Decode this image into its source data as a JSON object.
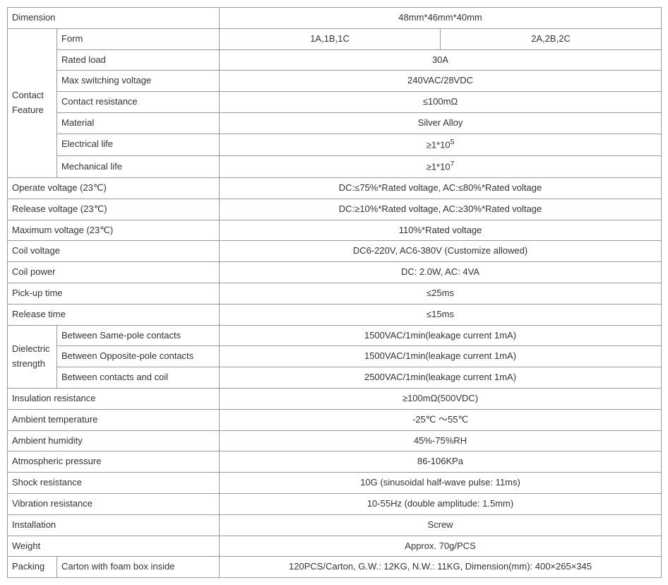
{
  "dimension_label": "Dimension",
  "dimension_value": "48mm*46mm*40mm",
  "contact_feature_label": "Contact Feature",
  "contact": {
    "form_label": "Form",
    "form_value_1": "1A,1B,1C",
    "form_value_2": "2A,2B,2C",
    "rated_load_label": "Rated load",
    "rated_load_value": "30A",
    "max_sw_v_label": "Max switching voltage",
    "max_sw_v_value": "240VAC/28VDC",
    "contact_res_label": "Contact resistance",
    "contact_res_value": "≤100mΩ",
    "material_label": "Material",
    "material_value": "Silver Alloy",
    "elec_life_label": "Electrical life",
    "elec_life_prefix": "≥1*10",
    "elec_life_exp": "5",
    "mech_life_label": "Mechanical life",
    "mech_life_prefix": "≥1*10",
    "mech_life_exp": "7"
  },
  "operate_v_label": "Operate voltage (23℃)",
  "operate_v_value": "DC:≤75%*Rated voltage, AC:≤80%*Rated voltage",
  "release_v_label": "Release voltage (23℃)",
  "release_v_value": "DC:≥10%*Rated voltage, AC:≥30%*Rated voltage",
  "max_v_label": "Maximum voltage (23℃)",
  "max_v_value": "110%*Rated voltage",
  "coil_v_label": "Coil voltage",
  "coil_v_value": "DC6-220V, AC6-380V (Customize allowed)",
  "coil_p_label": "Coil power",
  "coil_p_value": "DC: 2.0W, AC: 4VA",
  "pickup_label": "Pick-up time",
  "pickup_value": "≤25ms",
  "release_t_label": "Release time",
  "release_t_value": "≤15ms",
  "dielectric_label": "Dielectric strength",
  "dielectric": {
    "same_pole_label": "Between Same-pole contacts",
    "same_pole_value": "1500VAC/1min(leakage current 1mA)",
    "opp_pole_label": "Between Opposite-pole contacts",
    "opp_pole_value": "1500VAC/1min(leakage current 1mA)",
    "coil_label": "Between contacts and coil",
    "coil_value": "2500VAC/1min(leakage current 1mA)"
  },
  "insulation_label": "Insulation resistance",
  "insulation_value": "≥100mΩ(500VDC)",
  "amb_temp_label": "Ambient temperature",
  "amb_temp_value": "-25℃ ～55℃",
  "amb_hum_label": "Ambient humidity",
  "amb_hum_value": "45%-75%RH",
  "atm_press_label": "Atmospheric pressure",
  "atm_press_value": "86-106KPa",
  "shock_label": "Shock resistance",
  "shock_value": "10G (sinusoidal half-wave pulse: 11ms)",
  "vibration_label": "Vibration resistance",
  "vibration_value": "10-55Hz (double amplitude: 1.5mm)",
  "install_label": "Installation",
  "install_value": "Screw",
  "weight_label": "Weight",
  "weight_value": "Approx. 70g/PCS",
  "packing_label": "Packing",
  "packing_sub_label": "Carton with foam box inside",
  "packing_value": "120PCS/Carton, G.W.: 12KG, N.W.: 11KG, Dimension(mm): 400×265×345"
}
